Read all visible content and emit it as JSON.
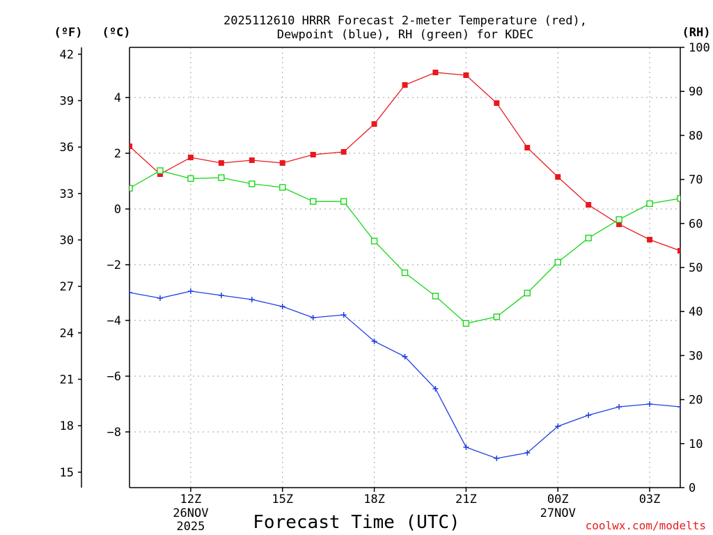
{
  "chart_data": {
    "type": "line",
    "title_line1": "2025112610 HRRR Forecast 2-meter Temperature (red),",
    "title_line2": "Dewpoint (blue), RH (green) for KDEC",
    "xlabel": "Forecast Time (UTC)",
    "credit": "coolwx.com/modelts",
    "units": {
      "fahrenheit": "(ºF)",
      "celsius": "(ºC)",
      "rh": "(RH)"
    },
    "x_hours": [
      10,
      11,
      12,
      13,
      14,
      15,
      16,
      17,
      18,
      19,
      20,
      21,
      22,
      23,
      24,
      25,
      26,
      27,
      28
    ],
    "xlim": [
      10,
      28
    ],
    "x_ticks": [
      {
        "hour": 12,
        "label": "12Z",
        "sub1": "26NOV",
        "sub2": "2025"
      },
      {
        "hour": 15,
        "label": "15Z",
        "sub1": "",
        "sub2": ""
      },
      {
        "hour": 18,
        "label": "18Z",
        "sub1": "",
        "sub2": ""
      },
      {
        "hour": 21,
        "label": "21Z",
        "sub1": "",
        "sub2": ""
      },
      {
        "hour": 24,
        "label": "00Z",
        "sub1": "27NOV",
        "sub2": ""
      },
      {
        "hour": 27,
        "label": "03Z",
        "sub1": "",
        "sub2": ""
      }
    ],
    "y_celsius": {
      "range": [
        -10,
        5.8
      ],
      "ticks": [
        4,
        2,
        0,
        -2,
        -4,
        -6,
        -8
      ],
      "labels": [
        "4",
        "2",
        "0",
        "−2",
        "−4",
        "−6",
        "−8"
      ]
    },
    "y_fahrenheit": {
      "ticks": [
        42,
        39,
        36,
        33,
        30,
        27,
        24,
        21,
        18,
        15
      ],
      "labels": [
        "42",
        "39",
        "36",
        "33",
        "30",
        "27",
        "24",
        "21",
        "18",
        "15"
      ]
    },
    "y_rh": {
      "range": [
        0,
        100
      ],
      "ticks": [
        100,
        90,
        80,
        70,
        60,
        50,
        40,
        30,
        20,
        10,
        0
      ],
      "labels": [
        "100",
        "90",
        "80",
        "70",
        "60",
        "50",
        "40",
        "30",
        "20",
        "10",
        "0"
      ]
    },
    "series": [
      {
        "name": "Temperature",
        "axis": "celsius",
        "color": "#e8191e",
        "marker": "filled-square",
        "values": [
          2.25,
          1.25,
          1.85,
          1.65,
          1.75,
          1.65,
          1.95,
          2.05,
          3.05,
          4.45,
          4.9,
          4.8,
          3.8,
          2.2,
          1.15,
          0.15,
          -0.55,
          -1.1,
          -1.5
        ]
      },
      {
        "name": "Dewpoint",
        "axis": "celsius",
        "color": "#1f3ee0",
        "marker": "plus",
        "values": [
          -3.0,
          -3.2,
          -2.95,
          -3.1,
          -3.25,
          -3.5,
          -3.9,
          -3.8,
          -4.75,
          -5.3,
          -6.45,
          -8.55,
          -8.95,
          -8.75,
          -7.8,
          -7.4,
          -7.1,
          -7.0,
          -7.1
        ]
      },
      {
        "name": "RH",
        "axis": "rh",
        "color": "#19d619",
        "marker": "open-square",
        "values": [
          68,
          72,
          70.2,
          70.4,
          69,
          68.2,
          65,
          65,
          56,
          48.8,
          43.5,
          37.3,
          38.8,
          44.2,
          51.2,
          56.7,
          60.9,
          64.5,
          65.7
        ]
      }
    ]
  }
}
